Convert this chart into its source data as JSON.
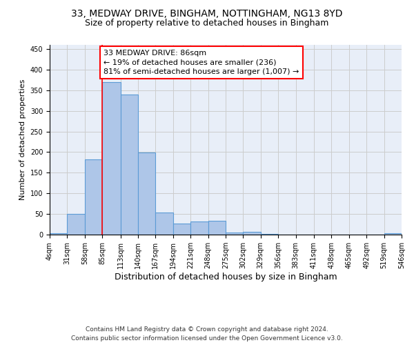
{
  "title1": "33, MEDWAY DRIVE, BINGHAM, NOTTINGHAM, NG13 8YD",
  "title2": "Size of property relative to detached houses in Bingham",
  "xlabel": "Distribution of detached houses by size in Bingham",
  "ylabel": "Number of detached properties",
  "bin_edges": [
    4,
    31,
    58,
    85,
    113,
    140,
    167,
    194,
    221,
    248,
    275,
    302,
    329,
    356,
    383,
    411,
    438,
    465,
    492,
    519,
    546
  ],
  "bin_counts": [
    3,
    50,
    182,
    370,
    340,
    199,
    54,
    26,
    32,
    33,
    5,
    6,
    2,
    0,
    0,
    0,
    0,
    0,
    0,
    3
  ],
  "bar_color": "#aec6e8",
  "bar_edge_color": "#5b9bd5",
  "red_line_x": 85,
  "annotation_text": "33 MEDWAY DRIVE: 86sqm\n← 19% of detached houses are smaller (236)\n81% of semi-detached houses are larger (1,007) →",
  "annotation_box_color": "white",
  "annotation_box_edge_color": "red",
  "red_line_color": "red",
  "grid_color": "#cccccc",
  "background_color": "#e8eef8",
  "ylim": [
    0,
    460
  ],
  "tick_labels": [
    "4sqm",
    "31sqm",
    "58sqm",
    "85sqm",
    "113sqm",
    "140sqm",
    "167sqm",
    "194sqm",
    "221sqm",
    "248sqm",
    "275sqm",
    "302sqm",
    "329sqm",
    "356sqm",
    "383sqm",
    "411sqm",
    "438sqm",
    "465sqm",
    "492sqm",
    "519sqm",
    "546sqm"
  ],
  "footer": "Contains HM Land Registry data © Crown copyright and database right 2024.\nContains public sector information licensed under the Open Government Licence v3.0.",
  "title1_fontsize": 10,
  "title2_fontsize": 9,
  "xlabel_fontsize": 9,
  "ylabel_fontsize": 8,
  "tick_fontsize": 7,
  "annotation_fontsize": 8,
  "footer_fontsize": 6.5
}
